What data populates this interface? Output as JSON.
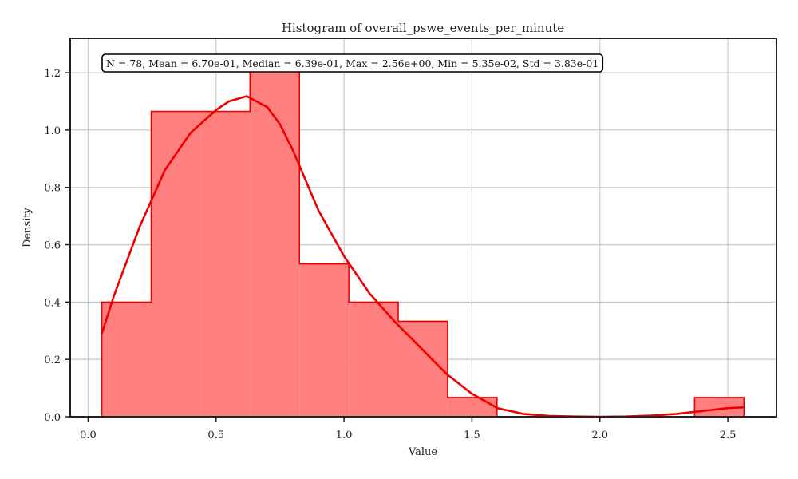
{
  "chart_data": {
    "type": "histogram",
    "title": "Histogram of overall_pswe_events_per_minute",
    "xlabel": "Value",
    "ylabel": "Density",
    "xlim": [
      -0.07,
      2.69
    ],
    "ylim": [
      0.0,
      1.32
    ],
    "xticks": [
      0.0,
      0.5,
      1.0,
      1.5,
      2.0,
      2.5
    ],
    "xtick_labels": [
      "0.0",
      "0.5",
      "1.0",
      "1.5",
      "2.0",
      "2.5"
    ],
    "yticks": [
      0.0,
      0.2,
      0.4,
      0.6,
      0.8,
      1.0,
      1.2
    ],
    "ytick_labels": [
      "0.0",
      "0.2",
      "0.4",
      "0.6",
      "0.8",
      "1.0",
      "1.2"
    ],
    "grid": true,
    "bin_edges": [
      0.0535,
      0.2466,
      0.4396,
      0.6327,
      0.8257,
      1.0188,
      1.2118,
      1.4049,
      1.5979,
      1.791,
      1.984,
      2.177,
      2.37,
      2.563
    ],
    "densities": [
      0.4,
      1.065,
      1.065,
      1.23,
      0.533,
      0.4,
      0.333,
      0.067,
      0.0,
      0.0,
      0.0,
      0.0,
      0.067
    ],
    "bar_color": "#ff7f7f",
    "edge_color": "#ee0000",
    "kde": {
      "color": "#ee0000",
      "x": [
        0.0535,
        0.1,
        0.2,
        0.3,
        0.4,
        0.5,
        0.55,
        0.62,
        0.7,
        0.75,
        0.8,
        0.9,
        1.0,
        1.1,
        1.2,
        1.3,
        1.4,
        1.5,
        1.6,
        1.7,
        1.8,
        1.9,
        2.0,
        2.1,
        2.2,
        2.3,
        2.4,
        2.5,
        2.563
      ],
      "y": [
        0.29,
        0.42,
        0.66,
        0.86,
        0.99,
        1.07,
        1.1,
        1.118,
        1.08,
        1.02,
        0.93,
        0.72,
        0.56,
        0.43,
        0.33,
        0.24,
        0.15,
        0.08,
        0.03,
        0.01,
        0.003,
        0.001,
        0.0,
        0.001,
        0.004,
        0.01,
        0.02,
        0.03,
        0.033
      ]
    },
    "stats_box": "N = 78, Mean = 6.70e-01, Median = 6.39e-01, Max = 2.56e+00, Min = 5.35e-02, Std = 3.83e-01"
  }
}
